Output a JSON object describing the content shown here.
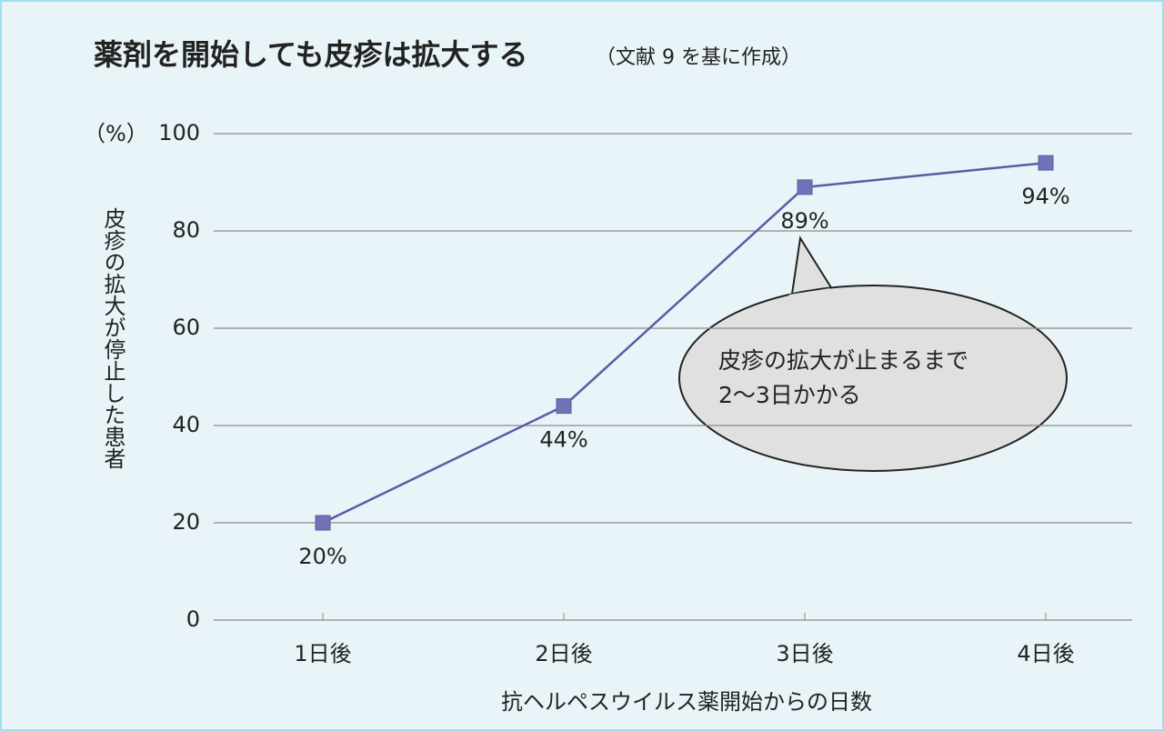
{
  "chart_data": {
    "type": "line",
    "title": "薬剤を開始しても皮疹は拡大する",
    "subtitle": "（文献 9 を基に作成）",
    "y_unit": "（%）",
    "y_label": "皮疹の拡大が停止した患者",
    "x_label": "抗ヘルペスウイルス薬開始からの日数",
    "categories": [
      "1日後",
      "2日後",
      "3日後",
      "4日後"
    ],
    "values": [
      20,
      44,
      89,
      94
    ],
    "value_labels": [
      "20%",
      "44%",
      "89%",
      "94%"
    ],
    "color": "#5b5ba3",
    "ylim": [
      0,
      100
    ],
    "yticks": [
      0,
      20,
      40,
      60,
      80,
      100
    ],
    "grid": true,
    "annotation": [
      "皮疹の拡大が止まるまで",
      "2〜3日かかる"
    ]
  }
}
